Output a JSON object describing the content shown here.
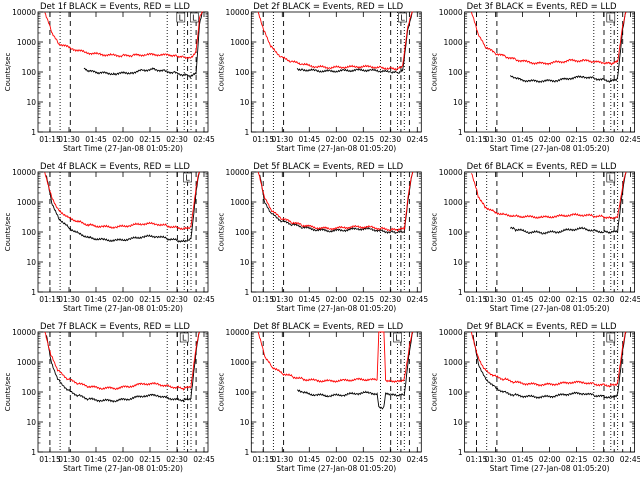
{
  "figure": {
    "background": "#ffffff"
  },
  "chart_data": [
    {
      "type": "line",
      "title": "Det 1f BLACK = Events, RED = LLD",
      "xlabel": "Start Time (27-Jan-08 01:05:20)",
      "ylabel": "Counts/sec",
      "ytick_labels": [
        "1",
        "10",
        "100",
        "1000",
        "10000"
      ],
      "xtick_labels": [
        "01:15",
        "01:30",
        "01:45",
        "02:00",
        "02:15",
        "02:30",
        "02:45"
      ],
      "ylim": [
        1,
        10000
      ],
      "y_scale": "log",
      "series": [
        {
          "color": "#ff0000",
          "x": [
            0.04,
            0.08,
            0.12,
            0.2,
            0.28,
            0.36,
            0.44,
            0.5,
            0.56,
            0.64,
            0.72,
            0.78,
            0.82,
            0.86,
            0.9,
            0.93,
            0.95,
            0.97
          ],
          "y": [
            10000,
            2200,
            900,
            600,
            450,
            390,
            360,
            350,
            360,
            380,
            380,
            360,
            340,
            320,
            300,
            500,
            6000,
            12000
          ]
        },
        {
          "color": "#000000",
          "x": [
            0.27,
            0.29,
            0.35,
            0.45,
            0.55,
            0.62,
            0.68,
            0.74,
            0.8,
            0.86,
            0.9,
            0.93,
            0.95,
            0.97
          ],
          "y": [
            130,
            110,
            95,
            88,
            95,
            115,
            125,
            110,
            95,
            80,
            70,
            90,
            4000,
            12000
          ]
        }
      ],
      "markers": [
        {
          "label": "L",
          "x": 0.84
        },
        {
          "label": "L",
          "x": 0.92
        }
      ]
    },
    {
      "type": "line",
      "title": "Det 2f BLACK = Events, RED = LLD",
      "xlabel": "Start Time (27-Jan-08 01:05:20)",
      "ylabel": "Counts/sec",
      "ytick_labels": [
        "1",
        "10",
        "100",
        "1000",
        "10000"
      ],
      "xtick_labels": [
        "01:15",
        "01:30",
        "01:45",
        "02:00",
        "02:15",
        "02:30",
        "02:45"
      ],
      "ylim": [
        1,
        10000
      ],
      "y_scale": "log",
      "series": [
        {
          "color": "#ff0000",
          "x": [
            0.04,
            0.08,
            0.12,
            0.18,
            0.24,
            0.3,
            0.38,
            0.46,
            0.54,
            0.62,
            0.7,
            0.76,
            0.82,
            0.86,
            0.89,
            0.92,
            0.95
          ],
          "y": [
            10000,
            2000,
            650,
            300,
            220,
            180,
            150,
            140,
            145,
            150,
            150,
            140,
            130,
            125,
            150,
            3000,
            12000
          ]
        },
        {
          "color": "#000000",
          "x": [
            0.27,
            0.3,
            0.38,
            0.46,
            0.54,
            0.62,
            0.7,
            0.76,
            0.82,
            0.86,
            0.89,
            0.92,
            0.95
          ],
          "y": [
            130,
            120,
            110,
            105,
            110,
            115,
            115,
            105,
            100,
            95,
            110,
            2500,
            12000
          ]
        }
      ],
      "markers": [
        {
          "label": "L",
          "x": 0.89
        }
      ]
    },
    {
      "type": "line",
      "title": "Det 3f BLACK = Events, RED = LLD",
      "xlabel": "Start Time (27-Jan-08 01:05:20)",
      "ylabel": "Counts/sec",
      "ytick_labels": [
        "1",
        "10",
        "100",
        "1000",
        "10000"
      ],
      "xtick_labels": [
        "01:15",
        "01:30",
        "01:45",
        "02:00",
        "02:15",
        "02:30",
        "02:45"
      ],
      "ylim": [
        1,
        10000
      ],
      "y_scale": "log",
      "series": [
        {
          "color": "#ff0000",
          "x": [
            0.04,
            0.08,
            0.12,
            0.18,
            0.24,
            0.3,
            0.38,
            0.46,
            0.54,
            0.62,
            0.7,
            0.76,
            0.82,
            0.86,
            0.9,
            0.93,
            0.95
          ],
          "y": [
            10000,
            1800,
            700,
            420,
            330,
            260,
            210,
            190,
            210,
            240,
            240,
            220,
            200,
            190,
            220,
            3500,
            12000
          ]
        },
        {
          "color": "#000000",
          "x": [
            0.27,
            0.3,
            0.38,
            0.46,
            0.54,
            0.62,
            0.7,
            0.76,
            0.82,
            0.86,
            0.9,
            0.93,
            0.95
          ],
          "y": [
            70,
            60,
            50,
            50,
            52,
            62,
            70,
            62,
            55,
            50,
            60,
            2500,
            12000
          ]
        }
      ],
      "markers": [
        {
          "label": "L",
          "x": 0.86
        }
      ]
    },
    {
      "type": "line",
      "title": "Det 4f BLACK = Events, RED = LLD",
      "xlabel": "Start Time (27-Jan-08 01:05:20)",
      "ylabel": "Counts/sec",
      "ytick_labels": [
        "1",
        "10",
        "100",
        "1000",
        "10000"
      ],
      "xtick_labels": [
        "01:15",
        "01:30",
        "01:45",
        "02:00",
        "02:15",
        "02:30",
        "02:45"
      ],
      "ylim": [
        1,
        10000
      ],
      "y_scale": "log",
      "series": [
        {
          "color": "#ff0000",
          "x": [
            0.04,
            0.08,
            0.12,
            0.18,
            0.24,
            0.3,
            0.38,
            0.46,
            0.54,
            0.62,
            0.7,
            0.76,
            0.82,
            0.86,
            0.9,
            0.93,
            0.95
          ],
          "y": [
            10000,
            1500,
            550,
            300,
            220,
            170,
            150,
            145,
            165,
            190,
            185,
            160,
            140,
            130,
            150,
            3000,
            12000
          ]
        },
        {
          "color": "#000000",
          "x": [
            0.05,
            0.08,
            0.12,
            0.18,
            0.24,
            0.3,
            0.38,
            0.46,
            0.54,
            0.62,
            0.7,
            0.76,
            0.82,
            0.86,
            0.9,
            0.93,
            0.95
          ],
          "y": [
            8000,
            1000,
            300,
            140,
            90,
            65,
            55,
            52,
            58,
            70,
            72,
            60,
            52,
            50,
            60,
            2200,
            12000
          ]
        }
      ],
      "markers": [
        {
          "label": "L",
          "x": 0.88
        }
      ]
    },
    {
      "type": "line",
      "title": "Det 5f BLACK = Events, RED = LLD",
      "xlabel": "Start Time (27-Jan-08 01:05:20)",
      "ylabel": "Counts/sec",
      "ytick_labels": [
        "1",
        "10",
        "100",
        "1000",
        "10000"
      ],
      "xtick_labels": [
        "01:15",
        "01:30",
        "01:45",
        "02:00",
        "02:15",
        "02:30",
        "02:45"
      ],
      "ylim": [
        1,
        10000
      ],
      "y_scale": "log",
      "series": [
        {
          "color": "#ff0000",
          "x": [
            0.04,
            0.08,
            0.12,
            0.18,
            0.24,
            0.3,
            0.38,
            0.46,
            0.54,
            0.62,
            0.7,
            0.76,
            0.82,
            0.86,
            0.9,
            0.93,
            0.95
          ],
          "y": [
            10000,
            1300,
            500,
            280,
            210,
            170,
            140,
            130,
            140,
            150,
            145,
            130,
            120,
            115,
            130,
            3200,
            12000
          ]
        },
        {
          "color": "#000000",
          "x": [
            0.05,
            0.08,
            0.12,
            0.18,
            0.24,
            0.3,
            0.38,
            0.46,
            0.54,
            0.62,
            0.7,
            0.76,
            0.82,
            0.86,
            0.9,
            0.93,
            0.95
          ],
          "y": [
            8000,
            900,
            400,
            230,
            180,
            145,
            120,
            110,
            115,
            128,
            125,
            110,
            100,
            95,
            100,
            2500,
            12000
          ]
        }
      ],
      "markers": []
    },
    {
      "type": "line",
      "title": "Det 6f BLACK = Events, RED = LLD",
      "xlabel": "Start Time (27-Jan-08 01:05:20)",
      "ylabel": "Counts/sec",
      "ytick_labels": [
        "1",
        "10",
        "100",
        "1000",
        "10000"
      ],
      "xtick_labels": [
        "01:15",
        "01:30",
        "01:45",
        "02:00",
        "02:15",
        "02:30",
        "02:45"
      ],
      "ylim": [
        1,
        10000
      ],
      "y_scale": "log",
      "series": [
        {
          "color": "#ff0000",
          "x": [
            0.04,
            0.08,
            0.12,
            0.18,
            0.24,
            0.3,
            0.38,
            0.46,
            0.54,
            0.62,
            0.7,
            0.76,
            0.82,
            0.86,
            0.9,
            0.93,
            0.95
          ],
          "y": [
            10000,
            1600,
            700,
            450,
            380,
            340,
            320,
            310,
            330,
            370,
            370,
            340,
            320,
            300,
            320,
            3500,
            12000
          ]
        },
        {
          "color": "#000000",
          "x": [
            0.27,
            0.3,
            0.38,
            0.46,
            0.54,
            0.62,
            0.7,
            0.76,
            0.82,
            0.86,
            0.9,
            0.93,
            0.95
          ],
          "y": [
            140,
            120,
            100,
            95,
            100,
            120,
            130,
            110,
            100,
            95,
            105,
            2500,
            12000
          ]
        }
      ],
      "markers": [
        {
          "label": "L",
          "x": 0.86
        }
      ]
    },
    {
      "type": "line",
      "title": "Det 7f BLACK = Events, RED = LLD",
      "xlabel": "Start Time (27-Jan-08 01:05:20)",
      "ylabel": "Counts/sec",
      "ytick_labels": [
        "1",
        "10",
        "100",
        "1000",
        "10000"
      ],
      "xtick_labels": [
        "01:15",
        "01:30",
        "01:45",
        "02:00",
        "02:15",
        "02:30",
        "02:45"
      ],
      "ylim": [
        1,
        10000
      ],
      "y_scale": "log",
      "series": [
        {
          "color": "#ff0000",
          "x": [
            0.04,
            0.08,
            0.12,
            0.18,
            0.24,
            0.3,
            0.38,
            0.46,
            0.54,
            0.62,
            0.7,
            0.76,
            0.82,
            0.86,
            0.9,
            0.93,
            0.95
          ],
          "y": [
            10000,
            1500,
            500,
            260,
            190,
            150,
            135,
            135,
            155,
            190,
            185,
            160,
            140,
            130,
            150,
            3000,
            12000
          ]
        },
        {
          "color": "#000000",
          "x": [
            0.05,
            0.08,
            0.12,
            0.18,
            0.24,
            0.3,
            0.38,
            0.46,
            0.54,
            0.62,
            0.7,
            0.76,
            0.82,
            0.86,
            0.9,
            0.93,
            0.95
          ],
          "y": [
            8000,
            900,
            250,
            110,
            75,
            58,
            52,
            52,
            60,
            75,
            78,
            64,
            56,
            54,
            62,
            2200,
            12000
          ]
        }
      ],
      "markers": [
        {
          "label": "L",
          "x": 0.86
        }
      ]
    },
    {
      "type": "line",
      "title": "Det 8f BLACK = Events, RED = LLD",
      "xlabel": "Start Time (27-Jan-08 01:05:20)",
      "ylabel": "Counts/sec",
      "ytick_labels": [
        "1",
        "10",
        "100",
        "1000",
        "10000"
      ],
      "xtick_labels": [
        "01:15",
        "01:30",
        "01:45",
        "02:00",
        "02:15",
        "02:30",
        "02:45"
      ],
      "ylim": [
        1,
        10000
      ],
      "y_scale": "log",
      "series": [
        {
          "color": "#ff0000",
          "x": [
            0.04,
            0.08,
            0.12,
            0.18,
            0.24,
            0.3,
            0.38,
            0.46,
            0.54,
            0.62,
            0.7,
            0.74,
            0.75,
            0.78,
            0.79,
            0.82,
            0.86,
            0.9,
            0.93,
            0.95
          ],
          "y": [
            10000,
            1500,
            700,
            420,
            330,
            270,
            240,
            230,
            240,
            260,
            260,
            250,
            12000,
            12000,
            250,
            240,
            230,
            260,
            3200,
            12000
          ]
        },
        {
          "color": "#000000",
          "x": [
            0.27,
            0.3,
            0.38,
            0.46,
            0.54,
            0.62,
            0.7,
            0.74,
            0.75,
            0.78,
            0.79,
            0.82,
            0.86,
            0.9,
            0.93,
            0.95
          ],
          "y": [
            110,
            95,
            80,
            75,
            80,
            90,
            95,
            85,
            30,
            30,
            85,
            80,
            75,
            80,
            2200,
            12000
          ]
        }
      ],
      "markers": [
        {
          "label": "L",
          "x": 0.86
        }
      ]
    },
    {
      "type": "line",
      "title": "Det 9f BLACK = Events, RED = LLD",
      "xlabel": "Start Time (27-Jan-08 01:05:20)",
      "ylabel": "Counts/sec",
      "ytick_labels": [
        "1",
        "10",
        "100",
        "1000",
        "10000"
      ],
      "xtick_labels": [
        "01:15",
        "01:30",
        "01:45",
        "02:00",
        "02:15",
        "02:30",
        "02:45"
      ],
      "ylim": [
        1,
        10000
      ],
      "y_scale": "log",
      "series": [
        {
          "color": "#ff0000",
          "x": [
            0.04,
            0.08,
            0.12,
            0.18,
            0.24,
            0.3,
            0.38,
            0.46,
            0.54,
            0.62,
            0.7,
            0.76,
            0.82,
            0.86,
            0.9,
            0.93,
            0.95
          ],
          "y": [
            10000,
            1400,
            550,
            330,
            260,
            210,
            185,
            175,
            185,
            210,
            210,
            185,
            170,
            165,
            190,
            3200,
            12000
          ]
        },
        {
          "color": "#000000",
          "x": [
            0.05,
            0.08,
            0.12,
            0.18,
            0.24,
            0.3,
            0.38,
            0.46,
            0.54,
            0.62,
            0.7,
            0.76,
            0.82,
            0.86,
            0.9,
            0.93,
            0.95
          ],
          "y": [
            8000,
            900,
            300,
            140,
            95,
            78,
            70,
            68,
            75,
            88,
            90,
            78,
            70,
            68,
            80,
            2300,
            12000
          ]
        }
      ],
      "markers": [
        {
          "label": "L",
          "x": 0.86
        }
      ]
    }
  ]
}
